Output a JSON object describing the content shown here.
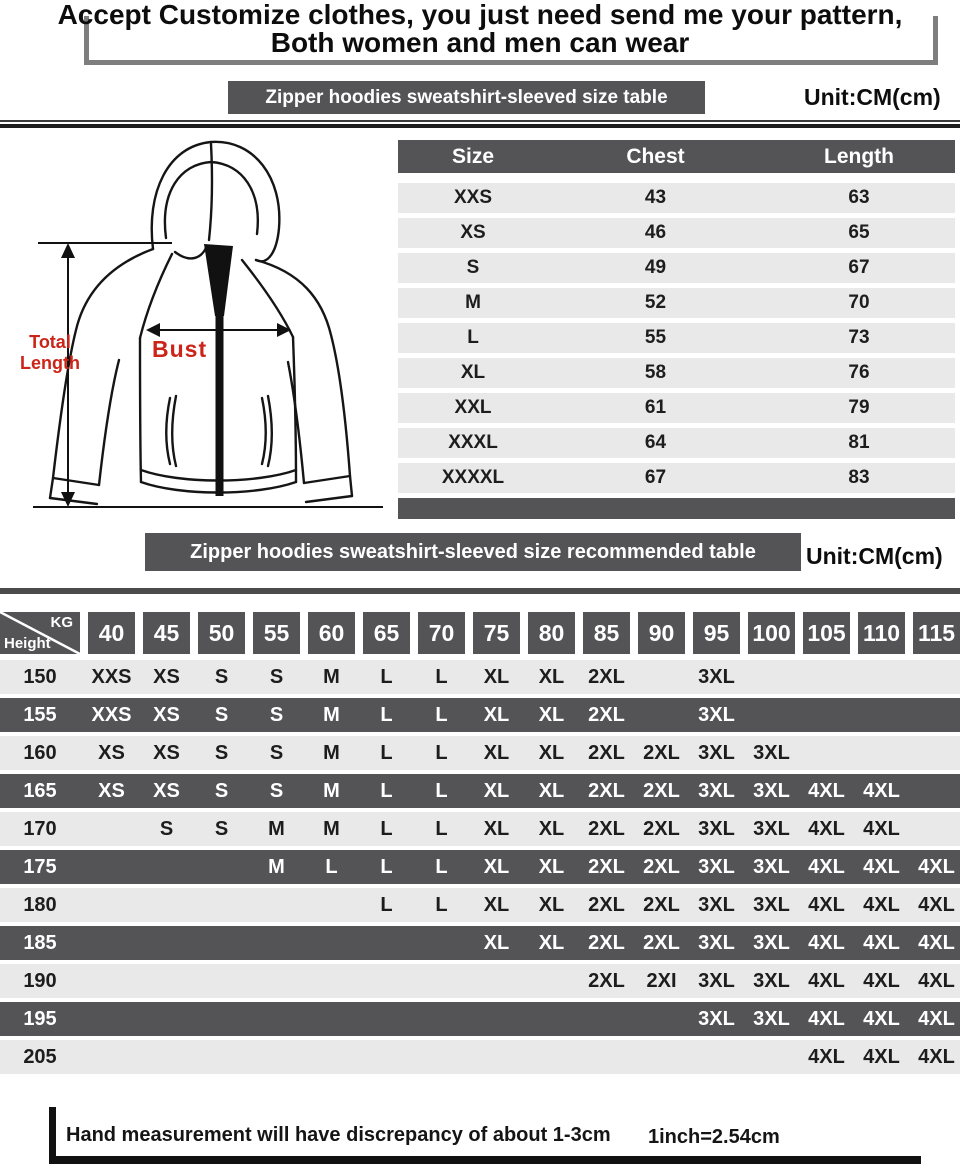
{
  "header": {
    "line1": "Accept Customize clothes, you just need send me your pattern,",
    "line2": "Both women and men can wear"
  },
  "section1": {
    "banner": "Zipper hoodies sweatshirt-sleeved size table",
    "unit": "Unit:CM(cm)"
  },
  "diagram": {
    "total_length_label": "Total Length",
    "bust_label": "Bust"
  },
  "size_table": {
    "columns": [
      "Size",
      "Chest",
      "Length"
    ],
    "rows": [
      [
        "XXS",
        "43",
        "63"
      ],
      [
        "XS",
        "46",
        "65"
      ],
      [
        "S",
        "49",
        "67"
      ],
      [
        "M",
        "52",
        "70"
      ],
      [
        "L",
        "55",
        "73"
      ],
      [
        "XL",
        "58",
        "76"
      ],
      [
        "XXL",
        "61",
        "79"
      ],
      [
        "XXXL",
        "64",
        "81"
      ],
      [
        "XXXXL",
        "67",
        "83"
      ]
    ]
  },
  "section2": {
    "banner": "Zipper hoodies sweatshirt-sleeved size recommended table",
    "unit": "Unit:CM(cm)"
  },
  "matrix": {
    "corner_top": "KG",
    "corner_bottom": "Height",
    "weights": [
      "40",
      "45",
      "50",
      "55",
      "60",
      "65",
      "70",
      "75",
      "80",
      "85",
      "90",
      "95",
      "100",
      "105",
      "110",
      "115"
    ],
    "rows": [
      {
        "height": "150",
        "cells": [
          "XXS",
          "XS",
          "S",
          "S",
          "M",
          "L",
          "L",
          "XL",
          "XL",
          "2XL",
          "",
          "3XL",
          "",
          "",
          "",
          ""
        ]
      },
      {
        "height": "155",
        "cells": [
          "XXS",
          "XS",
          "S",
          "S",
          "M",
          "L",
          "L",
          "XL",
          "XL",
          "2XL",
          "",
          "3XL",
          "",
          "",
          "",
          ""
        ]
      },
      {
        "height": "160",
        "cells": [
          "XS",
          "XS",
          "S",
          "S",
          "M",
          "L",
          "L",
          "XL",
          "XL",
          "2XL",
          "2XL",
          "3XL",
          "3XL",
          "",
          "",
          ""
        ]
      },
      {
        "height": "165",
        "cells": [
          "XS",
          "XS",
          "S",
          "S",
          "M",
          "L",
          "L",
          "XL",
          "XL",
          "2XL",
          "2XL",
          "3XL",
          "3XL",
          "4XL",
          "4XL",
          ""
        ]
      },
      {
        "height": "170",
        "cells": [
          "",
          "S",
          "S",
          "M",
          "M",
          "L",
          "L",
          "XL",
          "XL",
          "2XL",
          "2XL",
          "3XL",
          "3XL",
          "4XL",
          "4XL",
          ""
        ]
      },
      {
        "height": "175",
        "cells": [
          "",
          "",
          "",
          "M",
          "L",
          "L",
          "L",
          "XL",
          "XL",
          "2XL",
          "2XL",
          "3XL",
          "3XL",
          "4XL",
          "4XL",
          "4XL"
        ]
      },
      {
        "height": "180",
        "cells": [
          "",
          "",
          "",
          "",
          "",
          "L",
          "L",
          "XL",
          "XL",
          "2XL",
          "2XL",
          "3XL",
          "3XL",
          "4XL",
          "4XL",
          "4XL"
        ]
      },
      {
        "height": "185",
        "cells": [
          "",
          "",
          "",
          "",
          "",
          "",
          "",
          "XL",
          "XL",
          "2XL",
          "2XL",
          "3XL",
          "3XL",
          "4XL",
          "4XL",
          "4XL"
        ]
      },
      {
        "height": "190",
        "cells": [
          "",
          "",
          "",
          "",
          "",
          "",
          "",
          "",
          "",
          "2XL",
          "2XI",
          "3XL",
          "3XL",
          "4XL",
          "4XL",
          "4XL"
        ]
      },
      {
        "height": "195",
        "cells": [
          "",
          "",
          "",
          "",
          "",
          "",
          "",
          "",
          "",
          "",
          "",
          "3XL",
          "3XL",
          "4XL",
          "4XL",
          "4XL"
        ]
      },
      {
        "height": "205",
        "cells": [
          "",
          "",
          "",
          "",
          "",
          "",
          "",
          "",
          "",
          "",
          "",
          "",
          "",
          "4XL",
          "4XL",
          "4XL"
        ]
      }
    ]
  },
  "footer": {
    "note": "Hand measurement will have discrepancy of about 1-3cm",
    "conversion": "1inch=2.54cm"
  },
  "colors": {
    "dark": "#545457",
    "light_row": "#e9e9e9",
    "red_label": "#cc2418",
    "border_gray": "#7e7e7e"
  }
}
